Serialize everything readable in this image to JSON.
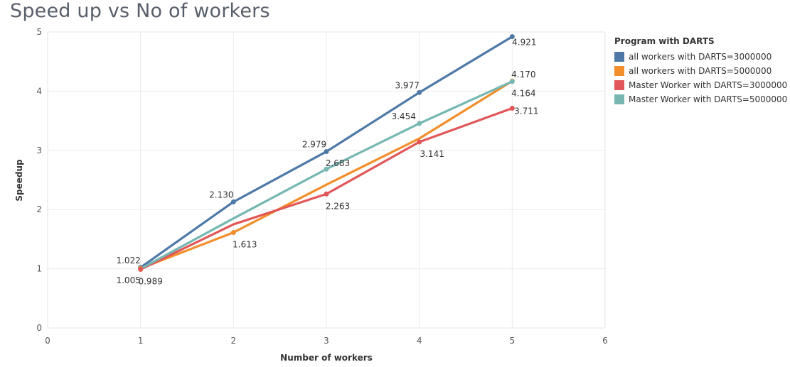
{
  "title": "Speed up vs No of workers",
  "chart_data": {
    "type": "line",
    "title": "Speed up vs No of workers",
    "xlabel": "Number of workers",
    "ylabel": "Speedup",
    "xlim": [
      0,
      6
    ],
    "ylim": [
      0,
      5
    ],
    "x_ticks": [
      "0",
      "1",
      "2",
      "3",
      "4",
      "5",
      "6"
    ],
    "y_ticks": [
      "0",
      "1",
      "2",
      "3",
      "4",
      "5"
    ],
    "grid": true,
    "legend_title": "Program with DARTS",
    "legend_position": "right",
    "x": [
      1,
      2,
      3,
      4,
      5
    ],
    "series": [
      {
        "name": "all workers with DARTS=3000000",
        "color": "#4e79a7",
        "values": [
          1.022,
          2.13,
          2.979,
          3.977,
          4.921
        ],
        "labels": [
          "1.022",
          "2.130",
          "2.979",
          "3.977",
          "4.921"
        ]
      },
      {
        "name": "all workers with DARTS=5000000",
        "color": "#f28e2b",
        "values": [
          1.005,
          1.613,
          2.42,
          3.2,
          4.17
        ],
        "labels": [
          "1.005",
          "1.613",
          "",
          "",
          "4.170"
        ]
      },
      {
        "name": "Master Worker with DARTS=3000000",
        "color": "#e15759",
        "values": [
          0.989,
          1.75,
          2.263,
          3.141,
          3.711
        ],
        "labels": [
          "0.989",
          "",
          "2.263",
          "3.141",
          "3.711"
        ]
      },
      {
        "name": "Master Worker with DARTS=5000000",
        "color": "#76b7b2",
        "values": [
          1.0,
          1.85,
          2.683,
          3.454,
          4.164
        ],
        "labels": [
          "",
          "",
          "2.683",
          "3.454",
          "4.164"
        ]
      }
    ]
  }
}
